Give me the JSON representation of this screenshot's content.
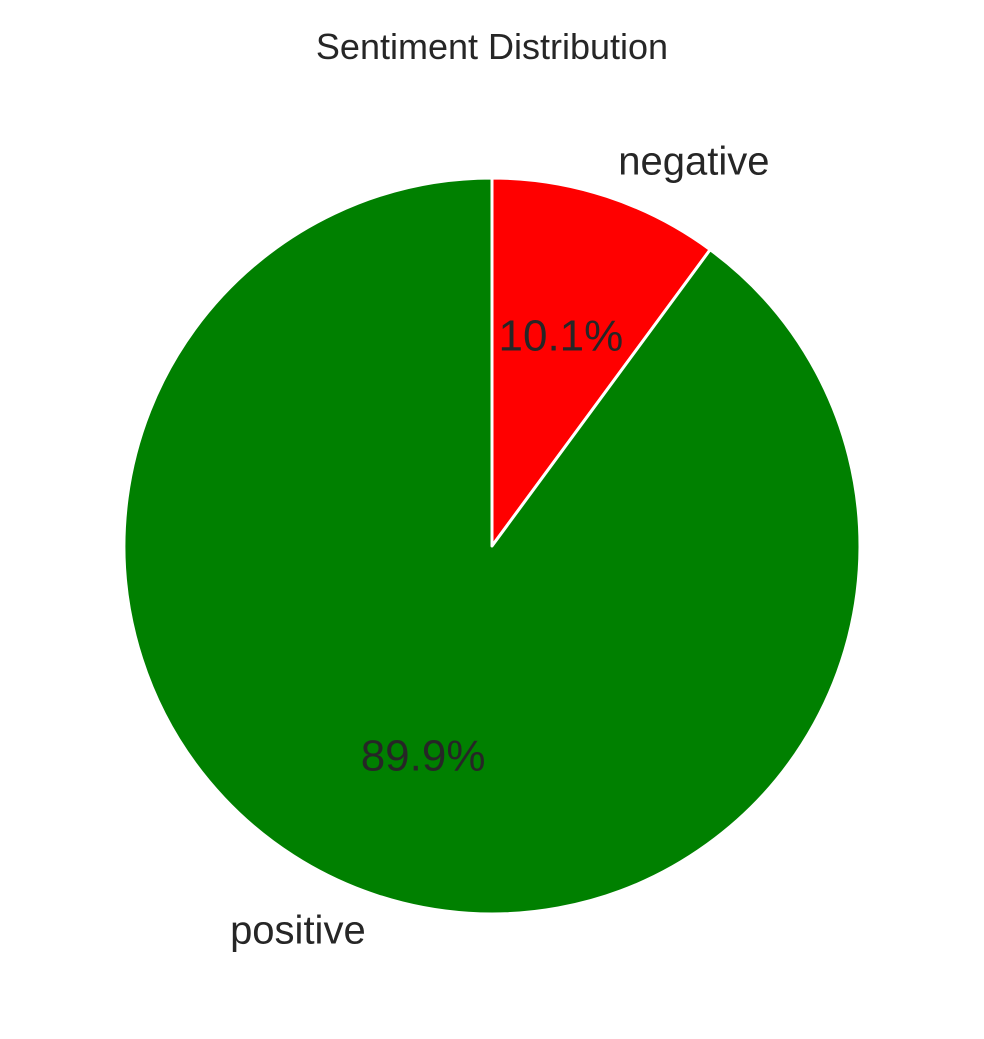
{
  "chart_data": {
    "type": "pie",
    "title": "Sentiment Distribution",
    "slices": [
      {
        "label": "negative",
        "value": 10.1,
        "pct_label": "10.1%",
        "color": "#ff0000"
      },
      {
        "label": "positive",
        "value": 89.9,
        "pct_label": "89.9%",
        "color": "#008000"
      }
    ],
    "start_angle": "top (12 o'clock)",
    "direction": "clockwise",
    "edge_color": "#ffffff"
  }
}
